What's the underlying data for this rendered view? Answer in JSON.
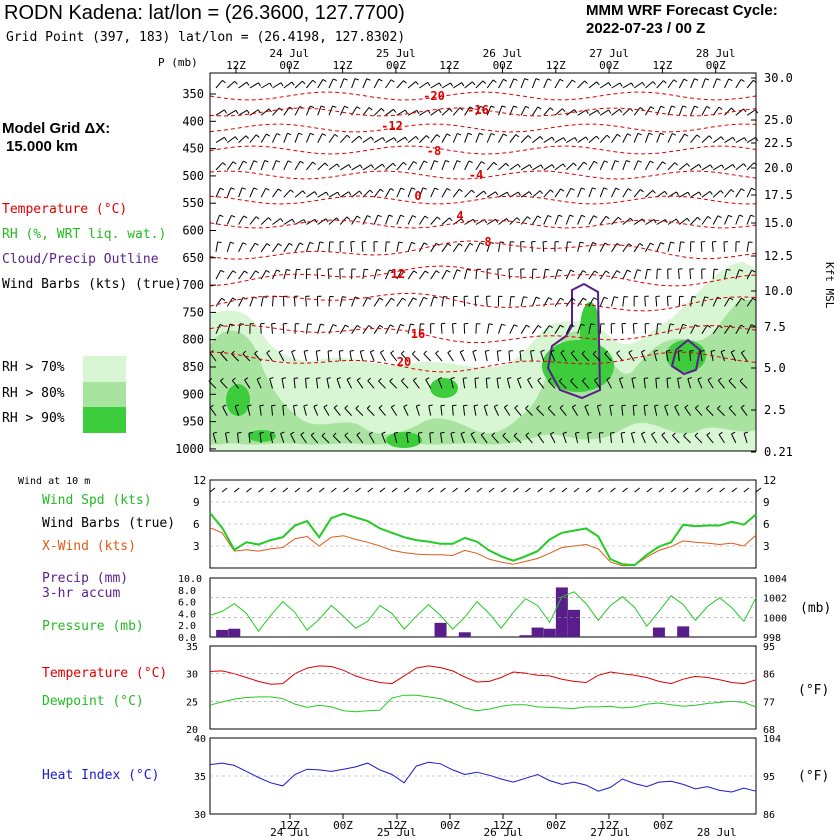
{
  "header": {
    "station": "RODN Kadena:",
    "latlon": "lat/lon = (26.3600, 127.7700)",
    "grid_point": "Grid Point (397, 183) lat/lon = (26.4198, 127.8302)",
    "cycle_title": "MMM WRF Forecast Cycle:",
    "cycle_value": "2022-07-23 / 00  Z"
  },
  "left_legend": {
    "model_grid_label": "Model Grid ΔX:",
    "model_grid_value": "15.000 km",
    "temperature": "Temperature (°C)",
    "rh": "RH (%, WRT liq. wat.)",
    "cloud": "Cloud/Precip Outline",
    "wind_barbs": "Wind Barbs (kts) (true)",
    "rh70": "RH > 70%",
    "rh80": "RH > 80%",
    "rh90": "RH > 90%",
    "wind_at_10m": "Wind at 10 m",
    "wind_spd": "Wind Spd (kts)",
    "wind_barbs_true": "Wind Barbs (true)",
    "x_wind": "X-Wind (kts)",
    "precip": "Precip (mm)",
    "precip2": "3-hr accum",
    "pressure": "Pressure (mb)",
    "temp2": "Temperature (°C)",
    "dewpoint": "Dewpoint (°C)",
    "heat_index": "Heat Index (°C)"
  },
  "colors": {
    "rh70": "#d8f5d4",
    "rh80": "#a8e3a0",
    "rh90": "#3ccc3c",
    "temp": "#e00000",
    "green": "#22cc22",
    "orange": "#e05a18",
    "purple": "#5a1e8c",
    "blue": "#1a1acc"
  },
  "chart_data": [
    {
      "type": "line",
      "name": "time-height cross section",
      "y_label_left": "P (mb)",
      "y_label_right": "Kft MSL",
      "x_time_ticks": [
        "12Z",
        "00Z",
        "12Z",
        "00Z",
        "12Z",
        "00Z",
        "12Z",
        "00Z",
        "12Z",
        "00Z"
      ],
      "x_date_labels": [
        "24 Jul",
        "25 Jul",
        "26 Jul",
        "27 Jul",
        "28 Jul"
      ],
      "pressure_levels": [
        350,
        400,
        450,
        500,
        550,
        600,
        650,
        700,
        750,
        800,
        850,
        900,
        950,
        1000
      ],
      "pressure_labels": [
        "350",
        "400",
        "450",
        "500",
        "550",
        "600",
        "650",
        "700",
        "750",
        "800",
        "850",
        "900",
        "950",
        "1000"
      ],
      "kft_labels": [
        "30.0",
        "25.0",
        "22.5",
        "20.0",
        "17.5",
        "15.0",
        "12.5",
        "10.0",
        "7.5",
        "5.0",
        "2.5",
        "0.21"
      ],
      "temperature_contour_labels": [
        "-20",
        "-16",
        "-12",
        "-8",
        "-4",
        "0",
        "4",
        "8",
        "12",
        "16",
        "20"
      ]
    },
    {
      "type": "line",
      "name": "10 m wind",
      "y_ticks": [
        "12",
        "9",
        "6",
        "3"
      ],
      "right_ticks": [
        "12",
        "9",
        "6",
        "3"
      ],
      "wind_speed": [
        7.5,
        5.5,
        2.5,
        3.5,
        3.2,
        3.8,
        4.2,
        5.8,
        6.4,
        4.2,
        6.8,
        7.4,
        6.9,
        6.4,
        5.4,
        4.8,
        4.2,
        3.8,
        3.6,
        3.3,
        3.3,
        4.1,
        3.6,
        2.4,
        1.6,
        1.0,
        1.6,
        2.3,
        3.9,
        4.8,
        5.1,
        5.4,
        4.3,
        1.2,
        0.5,
        0.4,
        1.8,
        2.9,
        3.5,
        5.9,
        5.7,
        5.8,
        5.8,
        6.3,
        5.9,
        7.3
      ],
      "x_wind": [
        5.5,
        4.8,
        2.3,
        2.5,
        2.3,
        2.6,
        2.8,
        4.0,
        4.3,
        3.0,
        4.2,
        4.4,
        3.9,
        3.5,
        3.0,
        2.4,
        2.1,
        1.9,
        1.8,
        1.8,
        1.7,
        2.4,
        2.0,
        1.2,
        0.8,
        0.5,
        0.9,
        1.3,
        2.0,
        2.8,
        3.0,
        3.2,
        2.6,
        0.8,
        0.3,
        0.4,
        1.5,
        2.4,
        2.9,
        3.7,
        3.5,
        3.4,
        3.2,
        3.4,
        3.0,
        4.5
      ]
    },
    {
      "type": "bar",
      "name": "precip and pressure",
      "left_ticks": [
        "10.0",
        "8.0",
        "6.0",
        "4.0",
        "2.0",
        "0.0"
      ],
      "right_ticks": [
        "1004",
        "1002",
        "1000",
        "998"
      ],
      "right_label": "(mb)",
      "precip_3hr": [
        0,
        1.2,
        1.4,
        0,
        0,
        0,
        0,
        0,
        0,
        0,
        0,
        0,
        0,
        0,
        0,
        0,
        0,
        0,
        0,
        2.4,
        0,
        0.8,
        0,
        0,
        0,
        0,
        0.3,
        1.6,
        1.4,
        8.4,
        4.6,
        0,
        0,
        0,
        0,
        0,
        0,
        1.6,
        0,
        1.8,
        0,
        0,
        0,
        0,
        0,
        0
      ],
      "pressure": [
        1000.2,
        1000.6,
        1001.4,
        1000.4,
        998.6,
        1000.2,
        1001.6,
        1000.5,
        998.7,
        999.8,
        1001.2,
        1000.1,
        998.9,
        999.6,
        1001.2,
        1000.4,
        998.8,
        1000.1,
        1001.3,
        1000.2,
        998.8,
        1000.0,
        1001.6,
        1000.4,
        998.9,
        1000.5,
        1001.9,
        1001.2,
        999.5,
        1002.1,
        1002.6,
        1001.4,
        999.7,
        1001.2,
        1002.1,
        1001.0,
        999.1,
        1000.6,
        1002.2,
        1001.3,
        999.7,
        1001.1,
        1002.0,
        1001.0,
        999.6,
        1002.0
      ]
    },
    {
      "type": "line",
      "name": "temperature dewpoint",
      "left_ticks": [
        "35",
        "30",
        "25",
        "20"
      ],
      "right_ticks": [
        "95",
        "86",
        "77",
        "68"
      ],
      "right_label": "(°F)",
      "temperature": [
        30.4,
        30.5,
        30.0,
        29.3,
        28.6,
        28.1,
        28.2,
        30.0,
        31.0,
        31.4,
        31.3,
        30.6,
        29.6,
        28.9,
        28.4,
        28.2,
        29.6,
        31.0,
        31.4,
        31.1,
        30.5,
        29.4,
        28.5,
        28.6,
        29.3,
        30.3,
        30.1,
        29.7,
        29.6,
        29.0,
        28.6,
        28.4,
        29.7,
        30.3,
        30.0,
        29.7,
        29.3,
        28.6,
        28.2,
        29.0,
        29.5,
        29.3,
        28.9,
        28.4,
        28.2,
        28.9
      ],
      "dewpoint": [
        24.3,
        24.9,
        25.4,
        25.7,
        25.8,
        25.8,
        25.5,
        24.5,
        23.9,
        24.3,
        24.0,
        23.3,
        23.1,
        23.3,
        23.4,
        25.6,
        26.1,
        26.1,
        25.8,
        25.5,
        24.7,
        23.8,
        23.3,
        23.6,
        24.1,
        24.4,
        24.4,
        24.0,
        23.9,
        23.8,
        23.7,
        24.0,
        24.0,
        24.1,
        23.8,
        24.0,
        24.5,
        24.7,
        24.4,
        24.1,
        24.3,
        24.6,
        24.8,
        25.0,
        24.8,
        24.0
      ]
    },
    {
      "type": "line",
      "name": "heat index",
      "left_ticks": [
        "40",
        "35",
        "30"
      ],
      "right_ticks": [
        "104",
        "95",
        "86"
      ],
      "right_label": "(°F)",
      "bottom_ticks": [
        "12Z",
        "00Z",
        "12Z",
        "00Z",
        "12Z",
        "00Z",
        "12Z",
        "00Z"
      ],
      "bottom_dates": [
        "24 Jul",
        "25 Jul",
        "26 Jul",
        "27 Jul",
        "28 Jul"
      ],
      "heat_index": [
        36.5,
        36.7,
        36.4,
        35.6,
        34.8,
        34.1,
        33.7,
        35.2,
        35.9,
        35.8,
        35.6,
        35.9,
        36.2,
        36.7,
        35.8,
        35.2,
        34.1,
        36.3,
        36.8,
        36.6,
        35.8,
        35.2,
        35.5,
        35.1,
        34.6,
        34.2,
        34.7,
        35.2,
        34.4,
        33.9,
        34.2,
        33.8,
        33.0,
        33.5,
        34.6,
        34.0,
        33.6,
        34.2,
        34.3,
        33.9,
        33.3,
        33.6,
        33.1,
        32.9,
        33.4,
        33.0
      ]
    }
  ]
}
